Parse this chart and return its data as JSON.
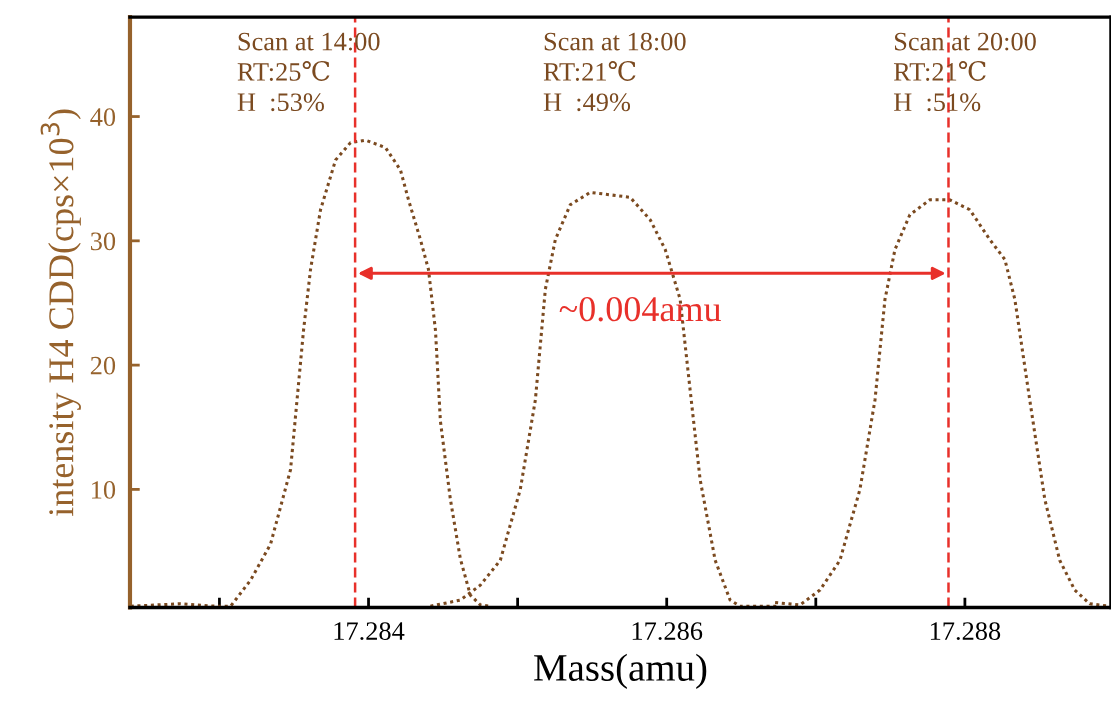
{
  "chart_data": {
    "type": "line",
    "xlabel": "Mass(amu)",
    "ylabel": "intensity H4 CDD(cps×10$^{3}$)",
    "line_style": "dotted",
    "marker": "none",
    "grid": false,
    "xlim": [
      17.2824,
      17.28898
    ],
    "ylim": [
      0.5,
      48
    ],
    "xticks": [
      {
        "value": 17.283,
        "label": null
      },
      17.284,
      {
        "value": 17.285,
        "label": null
      },
      17.286,
      {
        "value": 17.287,
        "label": null
      },
      17.288
    ],
    "yticks": [
      10,
      20,
      30,
      40
    ],
    "series": [
      {
        "color": "#7b4a20",
        "x": [
          17.282405,
          17.28274,
          17.282975,
          17.283075,
          17.283209,
          17.283343,
          17.283477,
          17.283564,
          17.283611,
          17.283678,
          17.283779,
          17.283879,
          17.28398,
          17.284114,
          17.284214,
          17.284268,
          17.284348,
          17.284402,
          17.284449,
          17.284482,
          17.284549,
          17.284616,
          17.284683,
          17.28475,
          17.284817
        ],
        "values": [
          0.6,
          0.8,
          0.6,
          0.6,
          2.7,
          5.6,
          11.6,
          22.8,
          27.7,
          32.5,
          36.5,
          37.9,
          38.1,
          37.5,
          35.7,
          33.3,
          30.1,
          27.7,
          22.8,
          15.5,
          9.2,
          4.4,
          1.5,
          0.7,
          0.6
        ]
      },
      {
        "color": "#7b4a20",
        "x": [
          17.284415,
          17.284616,
          17.28475,
          17.284884,
          17.285018,
          17.285119,
          17.285186,
          17.285253,
          17.285353,
          17.285487,
          17.285755,
          17.285889,
          17.28599,
          17.28609,
          17.286157,
          17.286224,
          17.286325,
          17.286425,
          17.286492,
          17.28676
        ],
        "values": [
          0.6,
          1.1,
          2.3,
          4.3,
          10.0,
          17.2,
          26.1,
          30.1,
          32.9,
          33.9,
          33.5,
          31.7,
          29.3,
          25.3,
          18.0,
          10.8,
          4.3,
          1.1,
          0.6,
          0.6
        ]
      },
      {
        "color": "#7b4a20",
        "x": [
          17.286727,
          17.286894,
          17.287028,
          17.287162,
          17.287296,
          17.287397,
          17.287464,
          17.287531,
          17.287631,
          17.287765,
          17.287899,
          17.288033,
          17.288167,
          17.288268,
          17.288335,
          17.288435,
          17.288536,
          17.288636,
          17.288737,
          17.288837,
          17.28897
        ],
        "values": [
          0.9,
          0.7,
          1.9,
          4.3,
          10.0,
          17.2,
          25.3,
          29.3,
          32.1,
          33.3,
          33.3,
          32.5,
          30.1,
          28.5,
          25.3,
          17.2,
          9.2,
          4.3,
          1.9,
          0.8,
          0.6
        ]
      }
    ],
    "ref_lines": [
      {
        "axis": "x",
        "value": 17.28391,
        "color": "#e8302a",
        "line_style": "dashed"
      },
      {
        "axis": "x",
        "value": 17.28789,
        "color": "#e8302a",
        "line_style": "dashed"
      }
    ],
    "annotations": [
      "Scan at 14:00\nRT:25℃\nH  :53%",
      "Scan at 18:00\nRT:21℃\nH  :49%",
      "Scan at 20:00\nRT:21℃\nH  :51%",
      "~0.004amu"
    ]
  }
}
